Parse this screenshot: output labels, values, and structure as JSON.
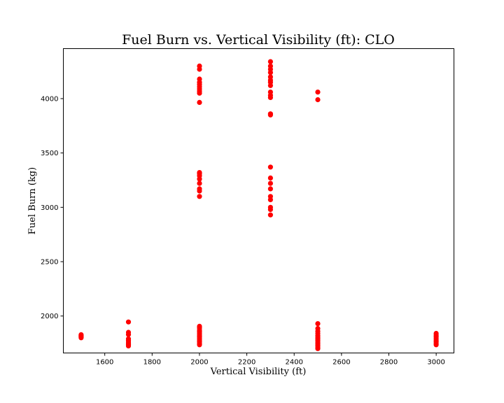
{
  "chart_data": {
    "type": "scatter",
    "title": "Fuel Burn vs. Vertical Visibility (ft): CLO",
    "xlabel": "Vertical Visibility (ft)",
    "ylabel": "Fuel Burn (kg)",
    "xlim": [
      1425,
      3075
    ],
    "ylim": [
      1660,
      4460
    ],
    "xticks": [
      1600,
      1800,
      2000,
      2200,
      2400,
      2600,
      2800,
      3000
    ],
    "yticks": [
      2000,
      2500,
      3000,
      3500,
      4000
    ],
    "grid": false,
    "marker_color": "#ff0000",
    "points": [
      [
        1500,
        1800
      ],
      [
        1500,
        1810
      ],
      [
        1500,
        1815
      ],
      [
        1500,
        1820
      ],
      [
        1500,
        1828
      ],
      [
        1700,
        1725
      ],
      [
        1700,
        1735
      ],
      [
        1700,
        1745
      ],
      [
        1700,
        1760
      ],
      [
        1700,
        1775
      ],
      [
        1700,
        1790
      ],
      [
        1700,
        1830
      ],
      [
        1700,
        1850
      ],
      [
        1700,
        1945
      ],
      [
        2000,
        1735
      ],
      [
        2000,
        1750
      ],
      [
        2000,
        1765
      ],
      [
        2000,
        1780
      ],
      [
        2000,
        1795
      ],
      [
        2000,
        1810
      ],
      [
        2000,
        1825
      ],
      [
        2000,
        1840
      ],
      [
        2000,
        1855
      ],
      [
        2000,
        1870
      ],
      [
        2000,
        1890
      ],
      [
        2000,
        1905
      ],
      [
        2000,
        3100
      ],
      [
        2000,
        3150
      ],
      [
        2000,
        3170
      ],
      [
        2000,
        3220
      ],
      [
        2000,
        3260
      ],
      [
        2000,
        3290
      ],
      [
        2000,
        3310
      ],
      [
        2000,
        3320
      ],
      [
        2000,
        3965
      ],
      [
        2000,
        4050
      ],
      [
        2000,
        4070
      ],
      [
        2000,
        4090
      ],
      [
        2000,
        4110
      ],
      [
        2000,
        4130
      ],
      [
        2000,
        4150
      ],
      [
        2000,
        4180
      ],
      [
        2000,
        4270
      ],
      [
        2000,
        4300
      ],
      [
        2300,
        2930
      ],
      [
        2300,
        2980
      ],
      [
        2300,
        3000
      ],
      [
        2300,
        3070
      ],
      [
        2300,
        3100
      ],
      [
        2300,
        3170
      ],
      [
        2300,
        3220
      ],
      [
        2300,
        3270
      ],
      [
        2300,
        3370
      ],
      [
        2300,
        3850
      ],
      [
        2300,
        3860
      ],
      [
        2300,
        4010
      ],
      [
        2300,
        4030
      ],
      [
        2300,
        4060
      ],
      [
        2300,
        4120
      ],
      [
        2300,
        4150
      ],
      [
        2300,
        4170
      ],
      [
        2300,
        4200
      ],
      [
        2300,
        4240
      ],
      [
        2300,
        4270
      ],
      [
        2300,
        4300
      ],
      [
        2300,
        4340
      ],
      [
        2500,
        1700
      ],
      [
        2500,
        1715
      ],
      [
        2500,
        1730
      ],
      [
        2500,
        1745
      ],
      [
        2500,
        1760
      ],
      [
        2500,
        1775
      ],
      [
        2500,
        1790
      ],
      [
        2500,
        1805
      ],
      [
        2500,
        1820
      ],
      [
        2500,
        1840
      ],
      [
        2500,
        1860
      ],
      [
        2500,
        1885
      ],
      [
        2500,
        1930
      ],
      [
        2500,
        3990
      ],
      [
        2500,
        4060
      ],
      [
        3000,
        1735
      ],
      [
        3000,
        1750
      ],
      [
        3000,
        1765
      ],
      [
        3000,
        1780
      ],
      [
        3000,
        1795
      ],
      [
        3000,
        1810
      ],
      [
        3000,
        1825
      ],
      [
        3000,
        1840
      ]
    ]
  }
}
